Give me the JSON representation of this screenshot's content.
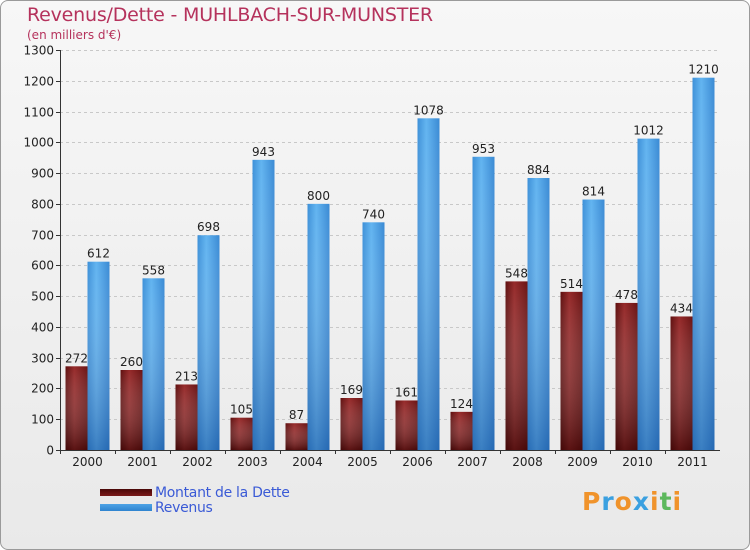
{
  "chart_data": {
    "type": "bar",
    "title": "Revenus/Dette - MUHLBACH-SUR-MUNSTER",
    "subtitle": "(en milliers d'€)",
    "xlabel": "",
    "ylabel": "",
    "categories": [
      "2000",
      "2001",
      "2002",
      "2003",
      "2004",
      "2005",
      "2006",
      "2007",
      "2008",
      "2009",
      "2010",
      "2011"
    ],
    "series": [
      {
        "name": "Montant de la Dette",
        "color": "#7a1a1a",
        "values": [
          272,
          260,
          213,
          105,
          87,
          169,
          161,
          124,
          548,
          514,
          478,
          434
        ]
      },
      {
        "name": "Revenus",
        "color": "#4ea3e6",
        "values": [
          612,
          558,
          698,
          943,
          800,
          740,
          1078,
          953,
          884,
          814,
          1012,
          1210
        ]
      }
    ],
    "ylim": [
      0,
      1300
    ],
    "yticks": [
      0,
      100,
      200,
      300,
      400,
      500,
      600,
      700,
      800,
      900,
      1000,
      1100,
      1200,
      1300
    ],
    "grid": true,
    "legend_position": "bottom-left"
  },
  "logo": {
    "letters": [
      "P",
      "r",
      "o",
      "x",
      "i",
      "t",
      "i"
    ],
    "colors": [
      "#f0932b",
      "#3aa0e0",
      "#f0932b",
      "#3aa0e0",
      "#f0932b",
      "#5cb85c",
      "#f0932b"
    ]
  }
}
